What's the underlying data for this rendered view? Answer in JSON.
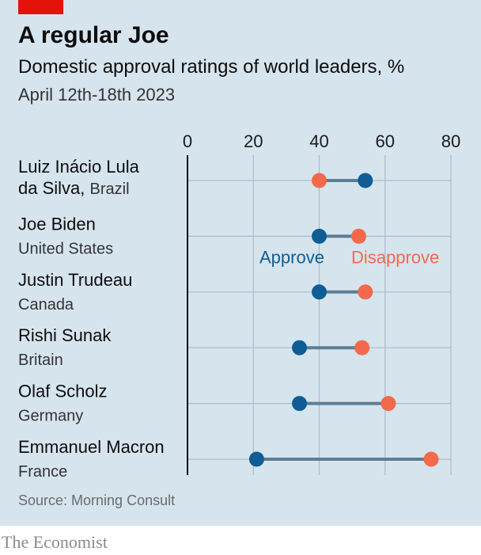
{
  "header": {
    "title": "A regular Joe",
    "subtitle": "Domestic approval ratings of world leaders, %",
    "date_range": "April 12th-18th 2023"
  },
  "footer": {
    "source": "Source: Morning Consult",
    "brand": "The Economist"
  },
  "colors": {
    "approve": "#0f5d94",
    "disapprove": "#f26a4b",
    "brand_red": "#e3120b"
  },
  "chart_data": {
    "type": "dumbbell",
    "xlim": [
      0,
      80
    ],
    "x_ticks": [
      "0",
      "20",
      "40",
      "60",
      "80"
    ],
    "grid": true,
    "legend": [
      {
        "key": "approve",
        "label": "Approve"
      },
      {
        "key": "disapprove",
        "label": "Disapprove"
      }
    ],
    "leaders": [
      {
        "name_lines": [
          "Luiz Inácio Lula",
          "da Silva"
        ],
        "country": "Brazil",
        "approve": 54,
        "disapprove": 40
      },
      {
        "name_lines": [
          "Joe Biden"
        ],
        "country": "United States",
        "approve": 40,
        "disapprove": 52
      },
      {
        "name_lines": [
          "Justin Trudeau"
        ],
        "country": "Canada",
        "approve": 40,
        "disapprove": 54
      },
      {
        "name_lines": [
          "Rishi Sunak"
        ],
        "country": "Britain",
        "approve": 34,
        "disapprove": 53
      },
      {
        "name_lines": [
          "Olaf Scholz"
        ],
        "country": "Germany",
        "approve": 34,
        "disapprove": 61
      },
      {
        "name_lines": [
          "Emmanuel Macron"
        ],
        "country": "France",
        "approve": 21,
        "disapprove": 74
      }
    ]
  }
}
